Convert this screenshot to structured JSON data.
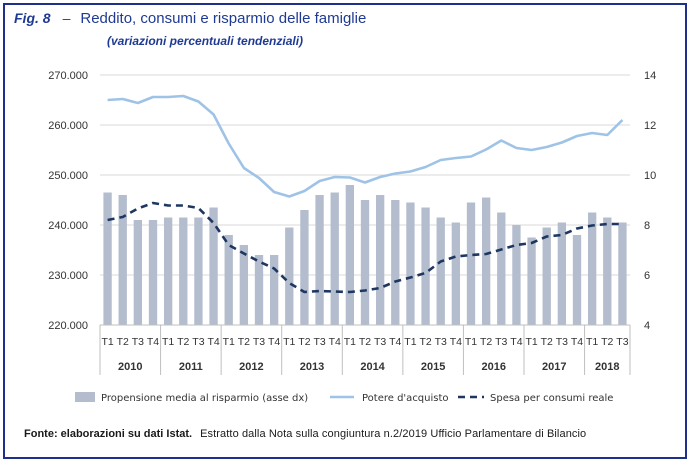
{
  "figure": {
    "label": "Fig. 8",
    "dash": "–",
    "title": "Reddito, consumi e risparmio delle famiglie",
    "subtitle": "(variazioni percentuali tendenziali)"
  },
  "footer": {
    "source": "Fonte: elaborazioni su dati Istat.",
    "note": "Estratto dalla Nota sulla congiuntura n.2/2019 Ufficio Parlamentare di Bilancio"
  },
  "colors": {
    "frame": "#1f2f8c",
    "title": "#1f3a93",
    "bars": "#b4bdce",
    "line_light": "#9ec3e6",
    "line_dark": "#1f3760",
    "grid": "#d9d9d9"
  },
  "chart_data": {
    "type": "bar",
    "categories": [
      "T1",
      "T2",
      "T3",
      "T4",
      "T1",
      "T2",
      "T3",
      "T4",
      "T1",
      "T2",
      "T3",
      "T4",
      "T1",
      "T2",
      "T3",
      "T4",
      "T1",
      "T2",
      "T3",
      "T4",
      "T1",
      "T2",
      "T3",
      "T4",
      "T1",
      "T2",
      "T3",
      "T4",
      "T1",
      "T2",
      "T3",
      "T4",
      "T1",
      "T2",
      "T3"
    ],
    "years": [
      "2010",
      "2011",
      "2012",
      "2013",
      "2014",
      "2015",
      "2016",
      "2017",
      "2018"
    ],
    "y_left_ticks": [
      "220.000",
      "230.000",
      "240.000",
      "250.000",
      "260.000",
      "270.000"
    ],
    "y_left_lim": [
      220000,
      270000
    ],
    "y_right_ticks": [
      "4",
      "6",
      "8",
      "10",
      "12",
      "14"
    ],
    "y_right_lim": [
      4,
      14
    ],
    "grid": true,
    "legend_position": "bottom",
    "series": [
      {
        "name": "Propensione media al risparmio (asse dx)",
        "type": "bar",
        "axis": "right",
        "values": [
          9.3,
          9.2,
          8.2,
          8.2,
          8.3,
          8.3,
          8.3,
          8.7,
          7.6,
          7.2,
          6.8,
          6.8,
          7.9,
          8.6,
          9.2,
          9.3,
          9.6,
          9.0,
          9.2,
          9.0,
          8.9,
          8.7,
          8.3,
          8.1,
          8.9,
          9.1,
          8.5,
          8.0,
          7.5,
          7.9,
          8.1,
          7.6,
          8.5,
          8.3,
          8.1
        ]
      },
      {
        "name": "Potere d'acquisto",
        "type": "line",
        "axis": "left",
        "values": [
          265.0,
          265.2,
          264.4,
          265.6,
          265.6,
          265.8,
          264.7,
          262.1,
          256.3,
          251.4,
          249.4,
          246.6,
          245.7,
          246.8,
          248.8,
          249.6,
          249.5,
          248.5,
          249.6,
          250.3,
          250.7,
          251.6,
          253.0,
          253.4,
          253.7,
          255.1,
          256.9,
          255.4,
          255.0,
          255.6,
          256.5,
          257.8,
          258.4,
          258.0,
          261.0
        ]
      },
      {
        "name": "Spesa per consumi reale",
        "type": "line",
        "axis": "left",
        "values": [
          241.0,
          241.6,
          243.3,
          244.4,
          243.9,
          243.9,
          243.4,
          240.4,
          236.0,
          234.3,
          232.7,
          231.3,
          228.4,
          226.6,
          226.8,
          226.7,
          226.6,
          226.9,
          227.4,
          228.7,
          229.5,
          230.4,
          232.7,
          233.7,
          234.0,
          234.2,
          235.1,
          236.0,
          236.4,
          237.7,
          238.0,
          239.3,
          239.9,
          240.2,
          240.2
        ]
      }
    ]
  }
}
